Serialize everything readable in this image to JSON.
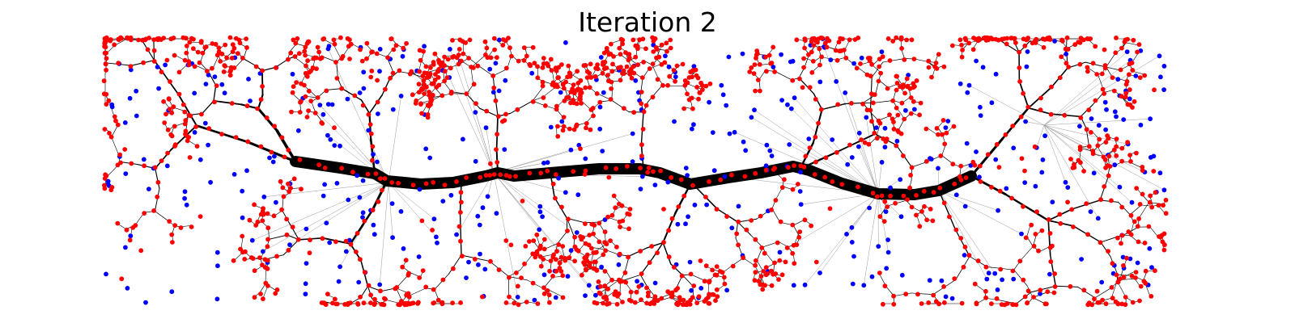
{
  "figure": {
    "title": "Iteration 2"
  },
  "colors": {
    "background": "#ffffff",
    "trunk": "#000000",
    "edge": "#000000",
    "faint_edge": "#9a9a9a",
    "tree_node": "#ff0000",
    "free_node": "#0000ff"
  },
  "node_legend": {
    "tree_node_color": "red",
    "free_node_color": "blue"
  }
}
